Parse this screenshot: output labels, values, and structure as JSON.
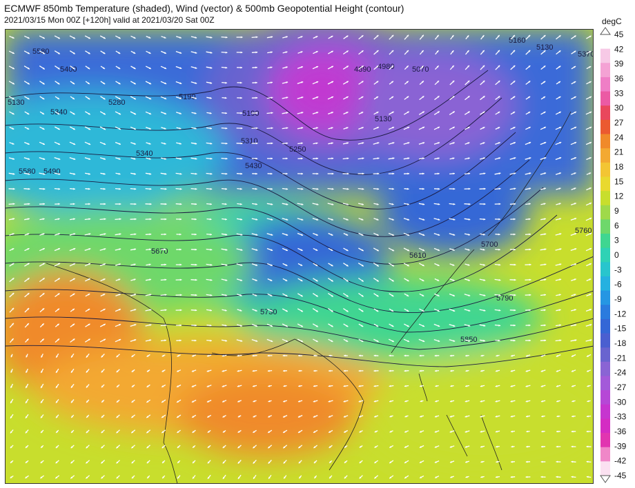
{
  "header": {
    "title": "ECMWF 850mb Temperature (shaded), Wind (vector) & 500mb Geopotential Height (contour)",
    "subtitle": "2021/03/15 Mon 00Z [+120h] valid at 2021/03/20 Sat 00Z"
  },
  "colorbar": {
    "units": "degC",
    "ticks": [
      "45",
      "42",
      "39",
      "36",
      "33",
      "30",
      "27",
      "24",
      "21",
      "18",
      "15",
      "12",
      "9",
      "6",
      "3",
      "0",
      "-3",
      "-6",
      "-9",
      "-12",
      "-15",
      "-18",
      "-21",
      "-24",
      "-27",
      "-30",
      "-33",
      "-36",
      "-39",
      "-42",
      "-45"
    ],
    "colors": [
      "#ffffff",
      "#f7c9e6",
      "#f4a2d4",
      "#ef7ec6",
      "#eb5aa4",
      "#e9475d",
      "#eb5a30",
      "#f08a2a",
      "#f3a932",
      "#f3c533",
      "#e9d92f",
      "#c8de2d",
      "#9fd94a",
      "#6ed86b",
      "#3fd691",
      "#2fd2b5",
      "#28c5cd",
      "#25b1e0",
      "#2596e3",
      "#2a7bde",
      "#3467d6",
      "#4a5fd0",
      "#6964cf",
      "#8a64d4",
      "#a35ad9",
      "#b647d6",
      "#c635cf",
      "#d42cc3",
      "#e135b0",
      "#f087c8",
      "#fbe1f1"
    ]
  },
  "map": {
    "contour_labels": [
      "5580",
      "5400",
      "5130",
      "5490",
      "5340",
      "5280",
      "5190",
      "5190",
      "5310",
      "5250",
      "5430",
      "5340",
      "5580",
      "4980",
      "4890",
      "5070",
      "5130",
      "5160",
      "5130",
      "5370",
      "5670",
      "5730",
      "5700",
      "5760",
      "5790",
      "5850",
      "5610"
    ],
    "colors": {
      "cold_core": "#b12fd6",
      "cold": "#3a6ad8",
      "cool": "#2fd2b5",
      "mild": "#c8de2d",
      "warm": "#f3a932",
      "hot": "#f08a2a",
      "contour": "#1a1a40",
      "wind": "#ffffff"
    }
  }
}
